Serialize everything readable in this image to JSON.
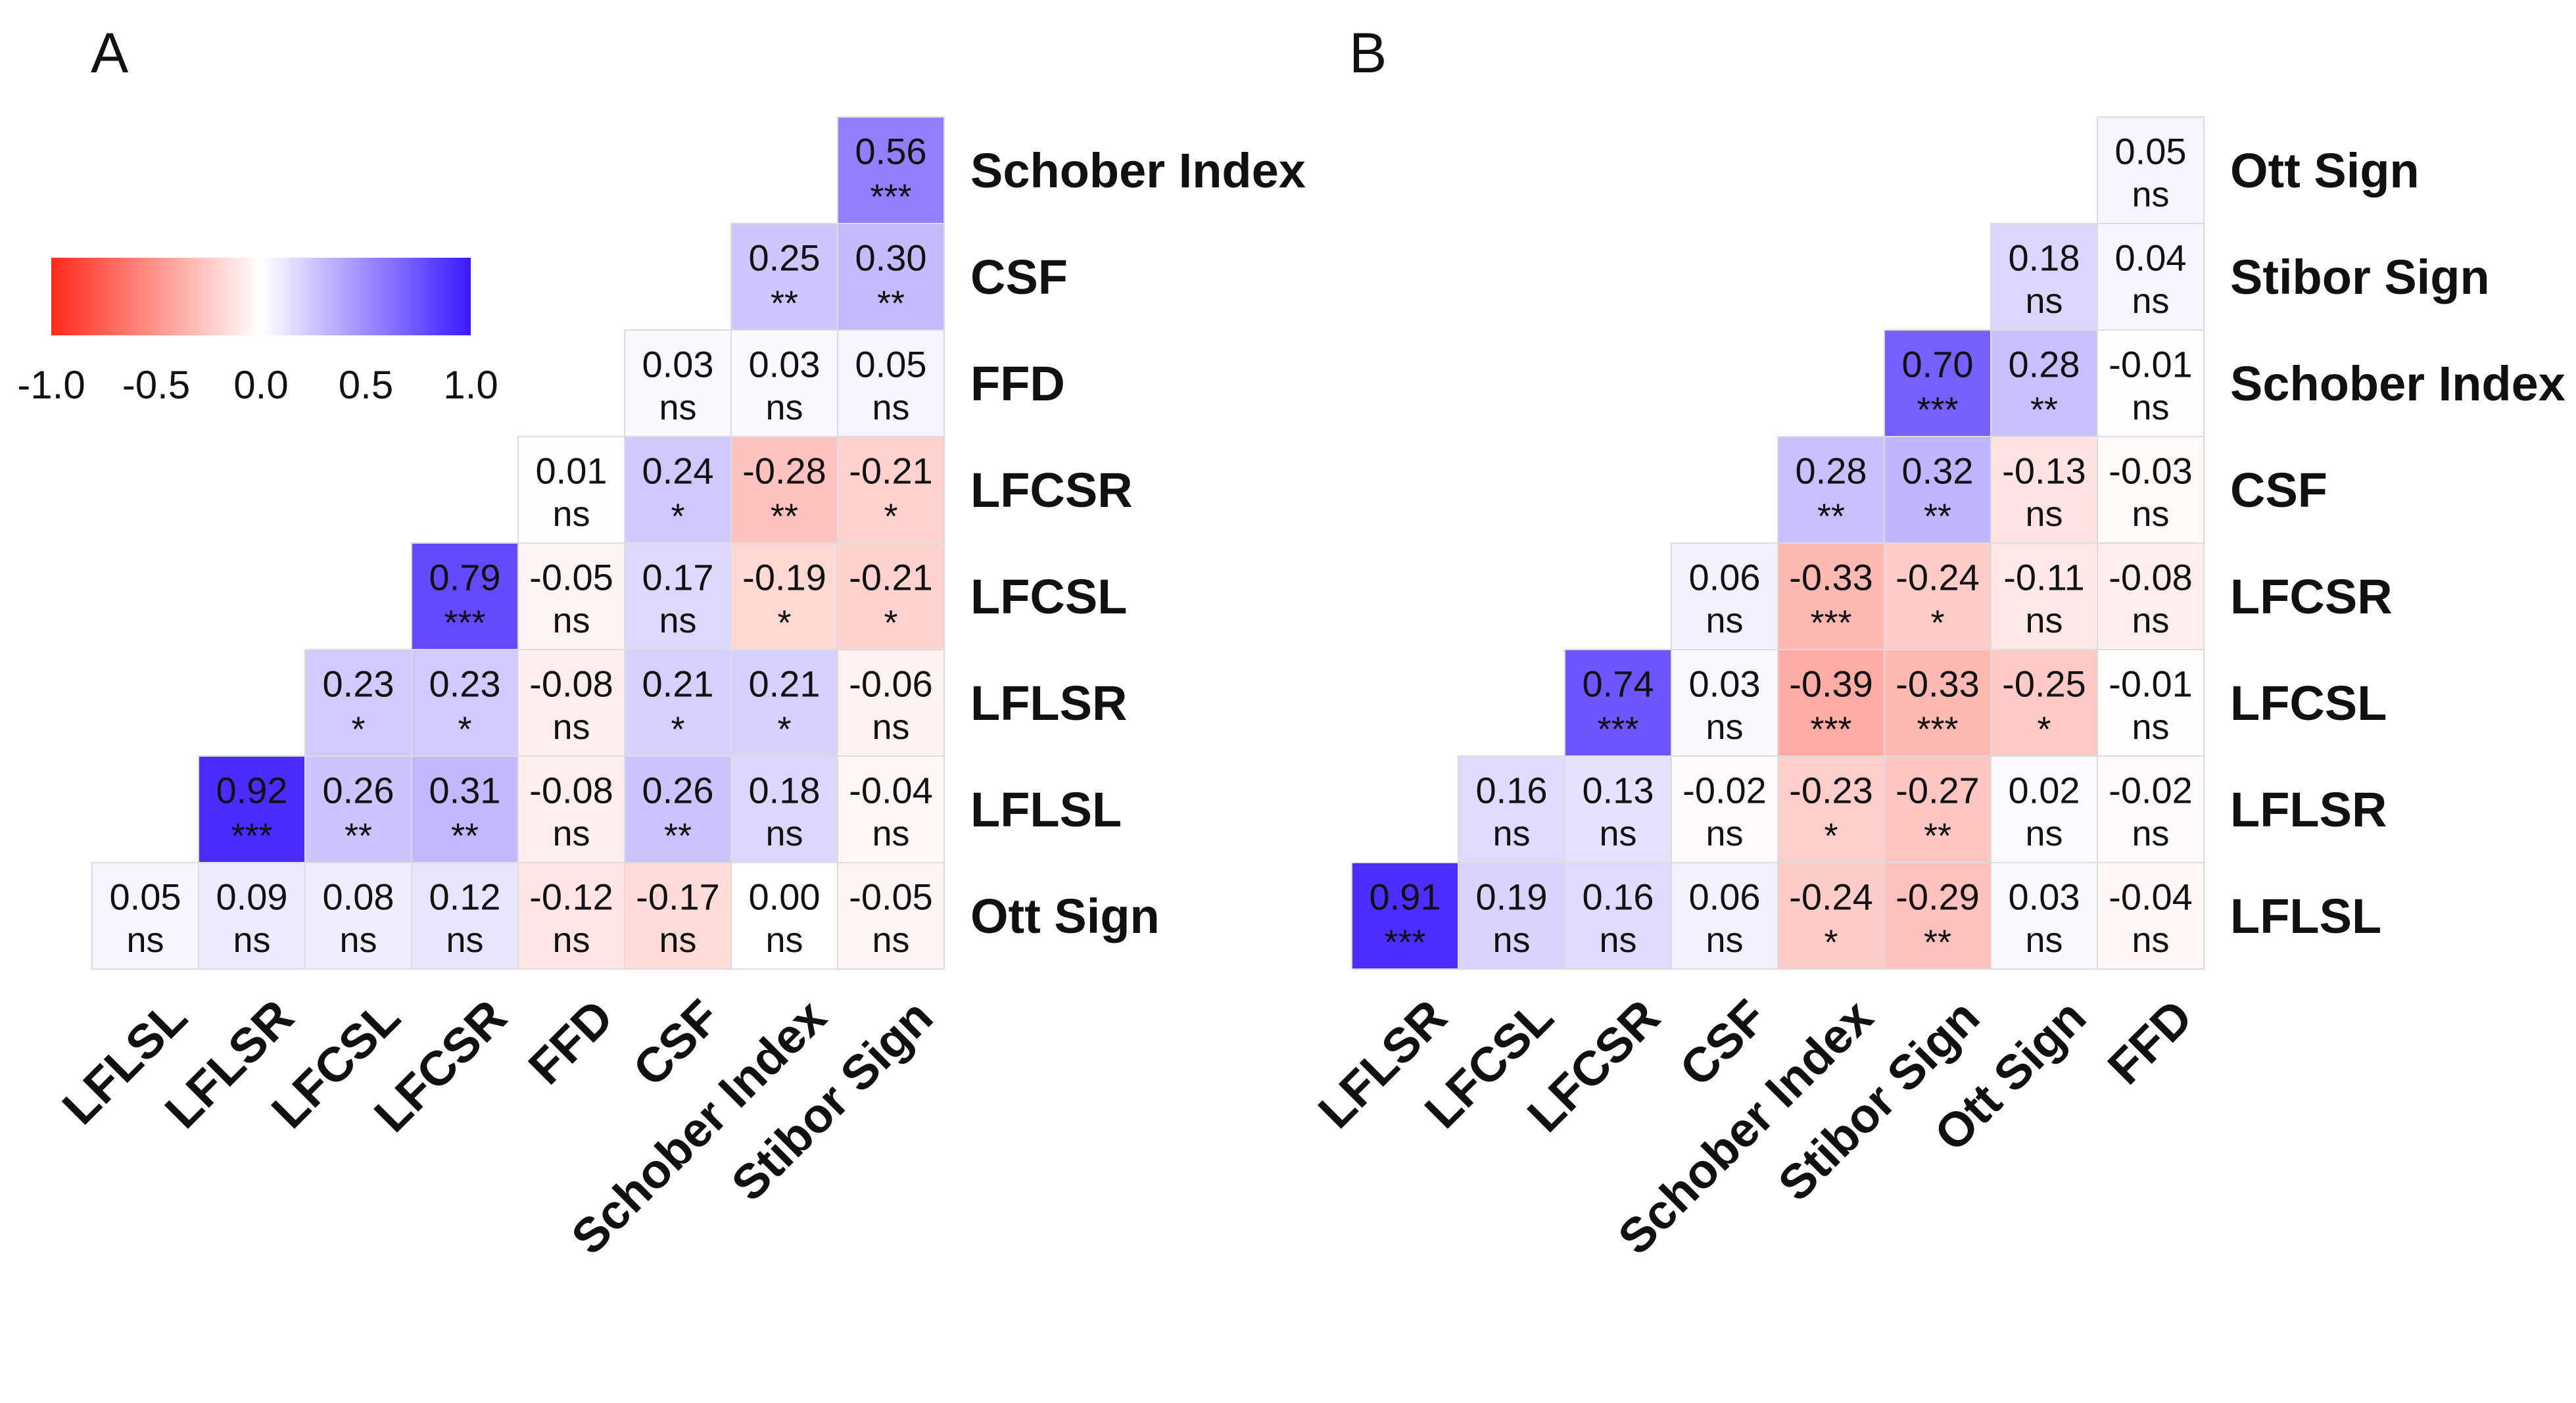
{
  "colorbar": {
    "ticks": [
      "-1.0",
      "-0.5",
      "0.0",
      "0.5",
      "1.0"
    ],
    "range": [
      -1.0,
      1.0
    ],
    "colors": {
      "low": "#ff2a1a",
      "mid": "#ffffff",
      "high": "#3a1aff"
    }
  },
  "chart_data": [
    {
      "type": "heatmap",
      "panel_label": "A",
      "columns": [
        "LFLSL",
        "LFLSR",
        "LFCSL",
        "LFCSR",
        "FFD",
        "CSF",
        "Schober Index",
        "Stibor Sign"
      ],
      "rows": [
        "Schober Index",
        "CSF",
        "FFD",
        "LFCSR",
        "LFCSL",
        "LFLSR",
        "LFLSL",
        "Ott Sign"
      ],
      "cells": [
        [
          null,
          null,
          null,
          null,
          null,
          null,
          null,
          {
            "r": 0.56,
            "label": "0.56",
            "sig": "***"
          }
        ],
        [
          null,
          null,
          null,
          null,
          null,
          null,
          {
            "r": 0.25,
            "label": "0.25",
            "sig": "**"
          },
          {
            "r": 0.3,
            "label": "0.30",
            "sig": "**"
          }
        ],
        [
          null,
          null,
          null,
          null,
          null,
          {
            "r": 0.03,
            "label": "0.03",
            "sig": "ns"
          },
          {
            "r": 0.03,
            "label": "0.03",
            "sig": "ns"
          },
          {
            "r": 0.05,
            "label": "0.05",
            "sig": "ns"
          }
        ],
        [
          null,
          null,
          null,
          null,
          {
            "r": 0.01,
            "label": "0.01",
            "sig": "ns"
          },
          {
            "r": 0.24,
            "label": "0.24",
            "sig": "*"
          },
          {
            "r": -0.28,
            "label": "-0.28",
            "sig": "**"
          },
          {
            "r": -0.21,
            "label": "-0.21",
            "sig": "*"
          }
        ],
        [
          null,
          null,
          null,
          {
            "r": 0.79,
            "label": "0.79",
            "sig": "***"
          },
          {
            "r": -0.05,
            "label": "-0.05",
            "sig": "ns"
          },
          {
            "r": 0.17,
            "label": "0.17",
            "sig": "ns"
          },
          {
            "r": -0.19,
            "label": "-0.19",
            "sig": "*"
          },
          {
            "r": -0.21,
            "label": "-0.21",
            "sig": "*"
          }
        ],
        [
          null,
          null,
          {
            "r": 0.23,
            "label": "0.23",
            "sig": "*"
          },
          {
            "r": 0.23,
            "label": "0.23",
            "sig": "*"
          },
          {
            "r": -0.08,
            "label": "-0.08",
            "sig": "ns"
          },
          {
            "r": 0.21,
            "label": "0.21",
            "sig": "*"
          },
          {
            "r": 0.21,
            "label": "0.21",
            "sig": "*"
          },
          {
            "r": -0.06,
            "label": "-0.06",
            "sig": "ns"
          }
        ],
        [
          null,
          {
            "r": 0.92,
            "label": "0.92",
            "sig": "***"
          },
          {
            "r": 0.26,
            "label": "0.26",
            "sig": "**"
          },
          {
            "r": 0.31,
            "label": "0.31",
            "sig": "**"
          },
          {
            "r": -0.08,
            "label": "-0.08",
            "sig": "ns"
          },
          {
            "r": 0.26,
            "label": "0.26",
            "sig": "**"
          },
          {
            "r": 0.18,
            "label": "0.18",
            "sig": "ns"
          },
          {
            "r": -0.04,
            "label": "-0.04",
            "sig": "ns"
          }
        ],
        [
          {
            "r": 0.05,
            "label": "0.05",
            "sig": "ns"
          },
          {
            "r": 0.09,
            "label": "0.09",
            "sig": "ns"
          },
          {
            "r": 0.08,
            "label": "0.08",
            "sig": "ns"
          },
          {
            "r": 0.12,
            "label": "0.12",
            "sig": "ns"
          },
          {
            "r": -0.12,
            "label": "-0.12",
            "sig": "ns"
          },
          {
            "r": -0.17,
            "label": "-0.17",
            "sig": "ns"
          },
          {
            "r": 0.0,
            "label": "0.00",
            "sig": "ns"
          },
          {
            "r": -0.05,
            "label": "-0.05",
            "sig": "ns"
          }
        ]
      ]
    },
    {
      "type": "heatmap",
      "panel_label": "B",
      "columns": [
        "LFLSR",
        "LFCSL",
        "LFCSR",
        "CSF",
        "Schober Index",
        "Stibor Sign",
        "Ott Sign",
        "FFD"
      ],
      "rows": [
        "Ott Sign",
        "Stibor Sign",
        "Schober Index",
        "CSF",
        "LFCSR",
        "LFCSL",
        "LFLSR",
        "LFLSL"
      ],
      "cells": [
        [
          null,
          null,
          null,
          null,
          null,
          null,
          null,
          {
            "r": 0.05,
            "label": "0.05",
            "sig": "ns"
          }
        ],
        [
          null,
          null,
          null,
          null,
          null,
          null,
          {
            "r": 0.18,
            "label": "0.18",
            "sig": "ns"
          },
          {
            "r": 0.04,
            "label": "0.04",
            "sig": "ns"
          }
        ],
        [
          null,
          null,
          null,
          null,
          null,
          {
            "r": 0.7,
            "label": "0.70",
            "sig": "***"
          },
          {
            "r": 0.28,
            "label": "0.28",
            "sig": "**"
          },
          {
            "r": -0.01,
            "label": "-0.01",
            "sig": "ns"
          }
        ],
        [
          null,
          null,
          null,
          null,
          {
            "r": 0.28,
            "label": "0.28",
            "sig": "**"
          },
          {
            "r": 0.32,
            "label": "0.32",
            "sig": "**"
          },
          {
            "r": -0.13,
            "label": "-0.13",
            "sig": "ns"
          },
          {
            "r": -0.03,
            "label": "-0.03",
            "sig": "ns"
          }
        ],
        [
          null,
          null,
          null,
          {
            "r": 0.06,
            "label": "0.06",
            "sig": "ns"
          },
          {
            "r": -0.33,
            "label": "-0.33",
            "sig": "***"
          },
          {
            "r": -0.24,
            "label": "-0.24",
            "sig": "*"
          },
          {
            "r": -0.11,
            "label": "-0.11",
            "sig": "ns"
          },
          {
            "r": -0.08,
            "label": "-0.08",
            "sig": "ns"
          }
        ],
        [
          null,
          null,
          {
            "r": 0.74,
            "label": "0.74",
            "sig": "***"
          },
          {
            "r": 0.03,
            "label": "0.03",
            "sig": "ns"
          },
          {
            "r": -0.39,
            "label": "-0.39",
            "sig": "***"
          },
          {
            "r": -0.33,
            "label": "-0.33",
            "sig": "***"
          },
          {
            "r": -0.25,
            "label": "-0.25",
            "sig": "*"
          },
          {
            "r": -0.01,
            "label": "-0.01",
            "sig": "ns"
          }
        ],
        [
          null,
          {
            "r": 0.16,
            "label": "0.16",
            "sig": "ns"
          },
          {
            "r": 0.13,
            "label": "0.13",
            "sig": "ns"
          },
          {
            "r": -0.02,
            "label": "-0.02",
            "sig": "ns"
          },
          {
            "r": -0.23,
            "label": "-0.23",
            "sig": "*"
          },
          {
            "r": -0.27,
            "label": "-0.27",
            "sig": "**"
          },
          {
            "r": 0.02,
            "label": "0.02",
            "sig": "ns"
          },
          {
            "r": -0.02,
            "label": "-0.02",
            "sig": "ns"
          }
        ],
        [
          {
            "r": 0.91,
            "label": "0.91",
            "sig": "***"
          },
          {
            "r": 0.19,
            "label": "0.19",
            "sig": "ns"
          },
          {
            "r": 0.16,
            "label": "0.16",
            "sig": "ns"
          },
          {
            "r": 0.06,
            "label": "0.06",
            "sig": "ns"
          },
          {
            "r": -0.24,
            "label": "-0.24",
            "sig": "*"
          },
          {
            "r": -0.29,
            "label": "-0.29",
            "sig": "**"
          },
          {
            "r": 0.03,
            "label": "0.03",
            "sig": "ns"
          },
          {
            "r": -0.04,
            "label": "-0.04",
            "sig": "ns"
          }
        ]
      ]
    }
  ]
}
